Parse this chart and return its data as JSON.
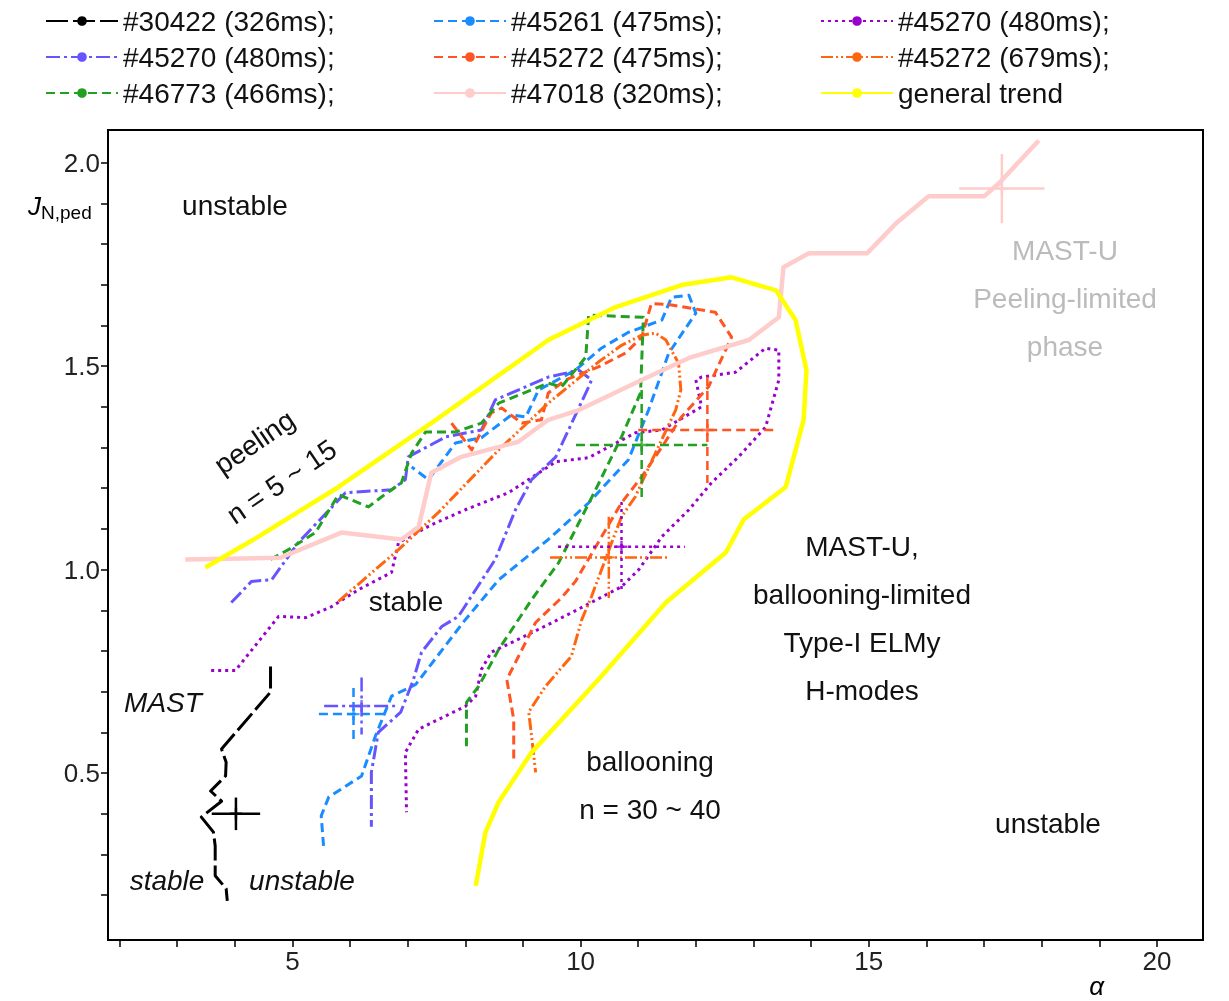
{
  "chart_data": {
    "type": "line",
    "xlabel": "α",
    "ylabel": "J$_{N,ped}$",
    "xlim": [
      1.8,
      20.8
    ],
    "ylim": [
      0.09,
      2.08
    ],
    "xticks": [
      {
        "value": 2,
        "label": null
      },
      {
        "value": 3,
        "label": null
      },
      {
        "value": 4,
        "label": null
      },
      5,
      {
        "value": 6,
        "label": null
      },
      {
        "value": 7,
        "label": null
      },
      {
        "value": 8,
        "label": null
      },
      {
        "value": 9,
        "label": null
      },
      10,
      {
        "value": 11,
        "label": null
      },
      {
        "value": 12,
        "label": null
      },
      {
        "value": 13,
        "label": null
      },
      {
        "value": 14,
        "label": null
      },
      15,
      {
        "value": 16,
        "label": null
      },
      {
        "value": 17,
        "label": null
      },
      {
        "value": 18,
        "label": null
      },
      {
        "value": 19,
        "label": null
      },
      20
    ],
    "yticks": [
      {
        "value": 0.2,
        "label": null
      },
      {
        "value": 0.3,
        "label": null
      },
      {
        "value": 0.4,
        "label": null
      },
      0.5,
      {
        "value": 0.6,
        "label": null
      },
      {
        "value": 0.7,
        "label": null
      },
      {
        "value": 0.8,
        "label": null
      },
      {
        "value": 0.9,
        "label": null
      },
      {
        "value": 1,
        "label": "1.0"
      },
      {
        "value": 1.1,
        "label": null
      },
      {
        "value": 1.2,
        "label": null
      },
      {
        "value": 1.3,
        "label": null
      },
      {
        "value": 1.4,
        "label": null
      },
      1.5,
      {
        "value": 1.6,
        "label": null
      },
      {
        "value": 1.7,
        "label": null
      },
      {
        "value": 1.8,
        "label": null
      },
      {
        "value": 1.9,
        "label": null
      },
      {
        "value": 2,
        "label": "2.0"
      }
    ],
    "grid": false,
    "legend": "top",
    "marker": "none",
    "series": [
      {
        "name": "#30422 (326ms);",
        "color": "#000000",
        "line_style": "longdash",
        "x": [
          4.62,
          4.62,
          3.77,
          3.85,
          3.84,
          3.58,
          3.77,
          3.42,
          3.63,
          3.66,
          3.66,
          3.85,
          3.87
        ],
        "values": [
          0.762,
          0.699,
          0.559,
          0.527,
          0.493,
          0.456,
          0.431,
          0.392,
          0.355,
          0.321,
          0.248,
          0.216,
          0.186
        ]
      },
      {
        "name": "#45261 (475ms);",
        "color": "#1a8cff",
        "line_style": "dashed",
        "x": [
          5.54,
          5.5,
          5.63,
          6.2,
          6.44,
          6.72,
          7.14,
          8.0,
          8.58,
          9.44,
          10.14,
          10.83,
          11.18,
          11.53,
          12.0,
          11.88,
          11.58,
          11.41,
          10.83,
          10.36,
          9.91,
          9.27,
          9.05,
          8.8,
          8.28,
          7.83,
          7.36,
          7.07
        ],
        "values": [
          0.321,
          0.395,
          0.441,
          0.493,
          0.591,
          0.689,
          0.718,
          0.877,
          0.975,
          1.074,
          1.164,
          1.27,
          1.392,
          1.532,
          1.63,
          1.674,
          1.669,
          1.613,
          1.583,
          1.544,
          1.49,
          1.441,
          1.375,
          1.38,
          1.324,
          1.311,
          1.221,
          1.252
        ]
      },
      {
        "name": "#45270 (480ms);",
        "color": "#9900cc",
        "line_style": "dotted",
        "x": [
          3.59,
          4.01,
          4.76,
          5.23,
          5.68,
          6.15,
          6.72,
          6.84,
          7.41,
          8.0,
          8.75,
          9.57,
          10.14,
          10.95,
          11.41,
          12.1,
          12.0,
          12.1,
          12.69,
          13.21,
          13.44,
          13.44,
          13.21,
          12.74,
          12.27,
          11.88,
          11.41,
          11.01,
          10.71,
          10.02,
          9.44,
          8.98,
          8.45,
          8.28,
          8.18,
          8.0,
          7.19,
          6.96,
          6.98
        ],
        "values": [
          0.752,
          0.752,
          0.885,
          0.882,
          0.909,
          0.951,
          0.993,
          1.066,
          1.11,
          1.147,
          1.189,
          1.265,
          1.275,
          1.336,
          1.343,
          1.4,
          1.466,
          1.473,
          1.485,
          1.544,
          1.539,
          1.466,
          1.35,
          1.277,
          1.213,
          1.147,
          1.081,
          1.0,
          0.958,
          0.907,
          0.865,
          0.833,
          0.797,
          0.755,
          0.689,
          0.664,
          0.608,
          0.551,
          0.404
        ]
      },
      {
        "name": "#45270 (480ms);",
        "color": "#6655ff",
        "line_style": "dashdot",
        "x": [
          3.94,
          4.29,
          4.64,
          5.1,
          5.92,
          6.72,
          6.96,
          7.01,
          7.66,
          8.28,
          8.52,
          9.44,
          9.97,
          10.19,
          10.14,
          9.79,
          9.57,
          9.15,
          8.87,
          8.52,
          7.88,
          7.59,
          7.24,
          7.1,
          6.88,
          6.49,
          6.37,
          6.37
        ],
        "values": [
          0.919,
          0.971,
          0.975,
          1.066,
          1.189,
          1.196,
          1.221,
          1.277,
          1.326,
          1.343,
          1.417,
          1.473,
          1.49,
          1.466,
          1.449,
          1.343,
          1.277,
          1.221,
          1.147,
          1.025,
          0.885,
          0.86,
          0.797,
          0.73,
          0.65,
          0.6,
          0.502,
          0.368
        ]
      },
      {
        "name": "#45272 (475ms);",
        "color": "#ff5522",
        "line_style": "dashed",
        "x": [
          7.76,
          8.11,
          8.45,
          8.63,
          8.98,
          9.32,
          9.44,
          9.74,
          10.31,
          10.78,
          11.06,
          11.23,
          11.58,
          12.34,
          12.62,
          12.22,
          11.75,
          11.41,
          11.06,
          10.71,
          9.91,
          9.67,
          9.22,
          8.87,
          8.72,
          8.84,
          8.84
        ],
        "values": [
          1.36,
          1.294,
          1.385,
          1.397,
          1.36,
          1.368,
          1.434,
          1.466,
          1.498,
          1.532,
          1.571,
          1.654,
          1.65,
          1.632,
          1.571,
          1.449,
          1.375,
          1.301,
          1.228,
          1.164,
          0.971,
          0.931,
          0.87,
          0.772,
          0.73,
          0.632,
          0.527
        ]
      },
      {
        "name": "#45272 (679ms);",
        "color": "#ff6611",
        "line_style": "dashdotdot",
        "x": [
          5.8,
          6.84,
          7.53,
          8.58,
          9.44,
          10.31,
          10.71,
          11.06,
          11.3,
          11.48,
          11.7,
          11.74,
          11.65,
          11.3,
          10.95,
          10.71,
          10.43,
          10.19,
          10.02,
          9.84,
          9.39,
          9.1,
          9.15,
          9.22
        ],
        "values": [
          0.922,
          1.049,
          1.14,
          1.294,
          1.409,
          1.51,
          1.551,
          1.576,
          1.581,
          1.564,
          1.507,
          1.441,
          1.392,
          1.287,
          1.179,
          1.13,
          1.025,
          0.934,
          0.877,
          0.787,
          0.713,
          0.65,
          0.591,
          0.502
        ]
      },
      {
        "name": "#46773 (466ms);",
        "color": "#22a022",
        "line_style": "dashed",
        "x": [
          4.62,
          4.93,
          5.4,
          5.8,
          6.32,
          6.55,
          6.89,
          7.07,
          7.31,
          7.83,
          8.28,
          8.58,
          9.44,
          9.67,
          10.09,
          10.14,
          11.09,
          11.04,
          10.71,
          10.26,
          9.62,
          9.15,
          8.58,
          8.23,
          8.02,
          8.02
        ],
        "values": [
          1.025,
          1.049,
          1.091,
          1.184,
          1.154,
          1.179,
          1.213,
          1.287,
          1.338,
          1.338,
          1.36,
          1.409,
          1.458,
          1.449,
          1.522,
          1.625,
          1.62,
          1.434,
          1.326,
          1.196,
          1.017,
          0.926,
          0.804,
          0.713,
          0.674,
          0.566
        ]
      },
      {
        "name": "#47018 (320ms);",
        "color": "#ffcccc",
        "line_style": "solid",
        "x": [
          3.14,
          4.79,
          5.85,
          6.89,
          7.19,
          7.41,
          7.93,
          8.92,
          9.44,
          9.97,
          11.06,
          11.88,
          12.92,
          13.44,
          13.52,
          13.96,
          14.97,
          15.49,
          16.04,
          17.0,
          17.26,
          17.95
        ],
        "values": [
          1.025,
          1.029,
          1.091,
          1.074,
          1.105,
          1.238,
          1.277,
          1.314,
          1.368,
          1.392,
          1.466,
          1.52,
          1.564,
          1.62,
          1.743,
          1.777,
          1.777,
          1.853,
          1.917,
          1.917,
          1.949,
          2.054
        ]
      },
      {
        "name": "general trend",
        "color": "#ffff00",
        "line_style": "solid",
        "x": [
          3.49,
          4.41,
          5.8,
          7.41,
          9.44,
          10.61,
          11.75,
          12.62,
          13.39,
          13.73,
          13.92,
          13.87,
          13.56,
          12.83,
          12.52,
          11.48,
          10.31,
          9.15,
          8.58,
          8.35,
          8.18
        ],
        "values": [
          1.005,
          1.081,
          1.203,
          1.36,
          1.564,
          1.645,
          1.699,
          1.718,
          1.686,
          1.613,
          1.49,
          1.368,
          1.203,
          1.123,
          1.042,
          0.919,
          0.73,
          0.551,
          0.429,
          0.355,
          0.223
        ]
      },
      {
        "type": "scatter",
        "marker": "cross",
        "color": "#000000",
        "line_style": "solid",
        "x": [
          4.02
        ],
        "values": [
          0.4
        ],
        "errors": [
          0.04
        ],
        "xerrors": [
          0.42
        ]
      },
      {
        "type": "scatter",
        "marker": "cross",
        "color": "#1a8cff",
        "line_style": "dashed",
        "x": [
          6.06
        ],
        "values": [
          0.645
        ],
        "errors": [
          0.064
        ],
        "xerrors": [
          0.6
        ]
      },
      {
        "type": "scatter",
        "marker": "cross",
        "color": "#6655ff",
        "line_style": "dashdot",
        "x": [
          6.2
        ],
        "values": [
          0.665
        ],
        "errors": [
          0.07
        ],
        "xerrors": [
          0.65
        ]
      },
      {
        "type": "scatter",
        "marker": "cross",
        "color": "#22a022",
        "line_style": "dashed",
        "x": [
          11.06
        ],
        "values": [
          1.306
        ],
        "errors": [
          0.135
        ],
        "xerrors": [
          1.14
        ]
      },
      {
        "type": "scatter",
        "marker": "cross",
        "color": "#ff5522",
        "line_style": "dashed",
        "x": [
          12.2
        ],
        "values": [
          1.343
        ],
        "errors": [
          0.13
        ],
        "xerrors": [
          1.2
        ]
      },
      {
        "type": "scatter",
        "marker": "cross",
        "color": "#ff6611",
        "line_style": "dashdotdot",
        "x": [
          10.49
        ],
        "values": [
          1.03
        ],
        "errors": [
          0.1
        ],
        "xerrors": [
          1.02
        ]
      },
      {
        "type": "scatter",
        "marker": "cross",
        "color": "#9900cc",
        "line_style": "dotted",
        "x": [
          10.71
        ],
        "values": [
          1.056
        ],
        "errors": [
          0.11
        ],
        "xerrors": [
          1.1
        ]
      },
      {
        "type": "scatter",
        "marker": "cross",
        "color": "#ffcccc",
        "line_style": "solid",
        "x": [
          17.31
        ],
        "values": [
          1.936
        ],
        "errors": [
          0.085
        ],
        "xerrors": [
          0.74
        ]
      }
    ],
    "annotations": [
      "unstable",
      "MAST-U\nPeeling-limited\nphase",
      "peeling\nn = 5 ~ 15",
      "stable",
      "MAST-U,\nballooning-limited\nType-I ELMy\nH-modes",
      "MAST",
      "ballooning\nn = 30 ~ 40",
      "unstable",
      "stable",
      "unstable"
    ]
  }
}
